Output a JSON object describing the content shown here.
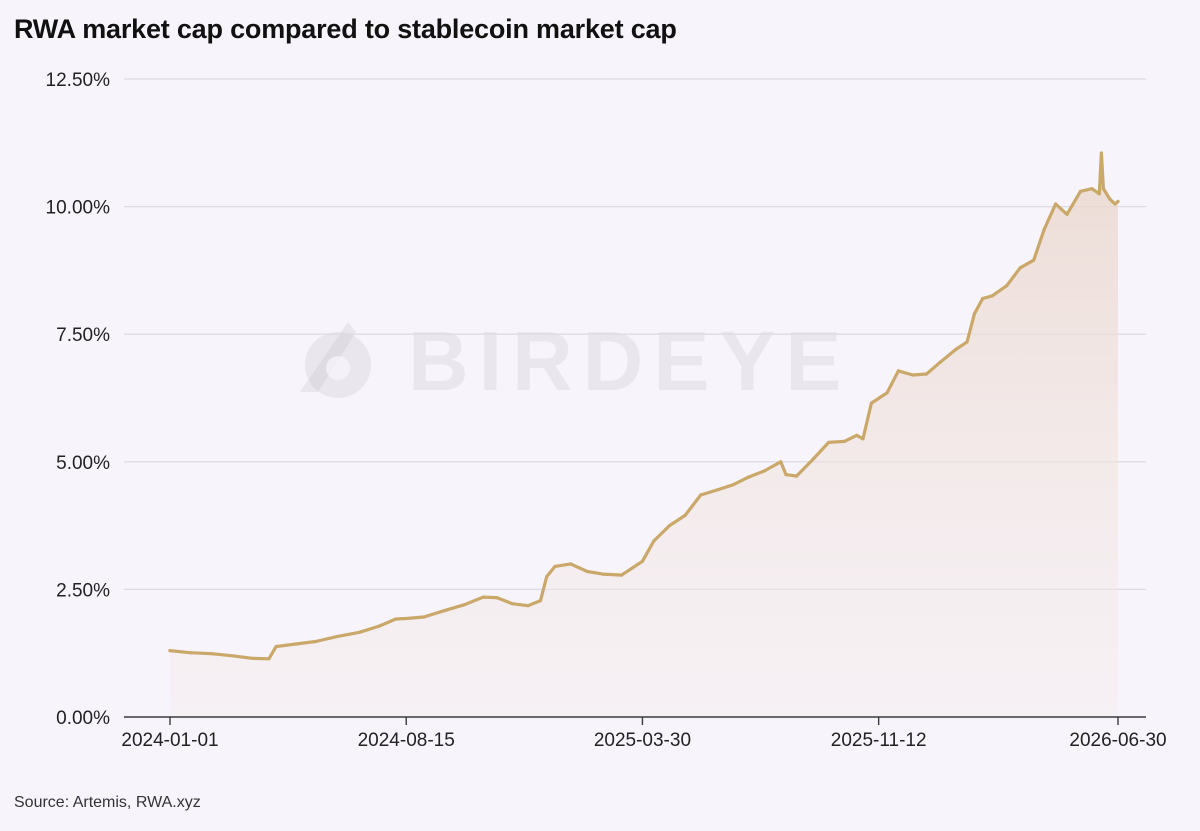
{
  "title": "RWA market cap compared to stablecoin market cap",
  "source": "Source: Artemis, RWA.xyz",
  "watermark": "BIRDEYE",
  "colors": {
    "line": "#c9a86a",
    "area": "#efe0da",
    "background": "#f7f4fb"
  },
  "chart_data": {
    "type": "area",
    "xlabel": "",
    "ylabel": "",
    "xlim": [
      "2024-01-01",
      "2026-06-30"
    ],
    "ylim": [
      0,
      12.5
    ],
    "y_ticks": [
      "0.00%",
      "2.50%",
      "5.00%",
      "7.50%",
      "10.00%",
      "12.50%"
    ],
    "x_ticks": [
      "2024-01-01",
      "2024-08-15",
      "2025-03-30",
      "2025-11-12",
      "2026-06-30"
    ],
    "grid": true,
    "legend": "none",
    "series": [
      {
        "values_unit": "%",
        "points": [
          [
            "2024-01-01",
            1.3
          ],
          [
            "2024-01-20",
            1.26
          ],
          [
            "2024-02-10",
            1.24
          ],
          [
            "2024-03-01",
            1.2
          ],
          [
            "2024-03-20",
            1.15
          ],
          [
            "2024-04-05",
            1.14
          ],
          [
            "2024-04-12",
            1.38
          ],
          [
            "2024-05-01",
            1.43
          ],
          [
            "2024-05-20",
            1.48
          ],
          [
            "2024-06-10",
            1.58
          ],
          [
            "2024-07-01",
            1.66
          ],
          [
            "2024-07-20",
            1.78
          ],
          [
            "2024-08-05",
            1.92
          ],
          [
            "2024-08-15",
            1.93
          ],
          [
            "2024-09-01",
            1.96
          ],
          [
            "2024-09-20",
            2.08
          ],
          [
            "2024-10-10",
            2.2
          ],
          [
            "2024-10-28",
            2.35
          ],
          [
            "2024-11-10",
            2.34
          ],
          [
            "2024-11-25",
            2.22
          ],
          [
            "2024-12-10",
            2.18
          ],
          [
            "2024-12-22",
            2.28
          ],
          [
            "2024-12-28",
            2.75
          ],
          [
            "2025-01-05",
            2.95
          ],
          [
            "2025-01-20",
            3.0
          ],
          [
            "2025-02-05",
            2.85
          ],
          [
            "2025-02-20",
            2.8
          ],
          [
            "2025-03-10",
            2.78
          ],
          [
            "2025-03-30",
            3.05
          ],
          [
            "2025-04-10",
            3.45
          ],
          [
            "2025-04-25",
            3.75
          ],
          [
            "2025-05-10",
            3.95
          ],
          [
            "2025-05-25",
            4.35
          ],
          [
            "2025-06-10",
            4.45
          ],
          [
            "2025-06-25",
            4.55
          ],
          [
            "2025-07-10",
            4.7
          ],
          [
            "2025-07-25",
            4.82
          ],
          [
            "2025-08-10",
            5.0
          ],
          [
            "2025-08-15",
            4.75
          ],
          [
            "2025-08-25",
            4.72
          ],
          [
            "2025-09-10",
            5.05
          ],
          [
            "2025-09-25",
            5.38
          ],
          [
            "2025-10-10",
            5.4
          ],
          [
            "2025-10-22",
            5.52
          ],
          [
            "2025-10-28",
            5.45
          ],
          [
            "2025-11-05",
            6.15
          ],
          [
            "2025-11-20",
            6.35
          ],
          [
            "2025-12-01",
            6.78
          ],
          [
            "2025-12-15",
            6.7
          ],
          [
            "2025-12-28",
            6.72
          ],
          [
            "2026-01-10",
            6.95
          ],
          [
            "2026-01-25",
            7.2
          ],
          [
            "2026-02-05",
            7.35
          ],
          [
            "2026-02-12",
            7.9
          ],
          [
            "2026-02-20",
            8.2
          ],
          [
            "2026-03-01",
            8.25
          ],
          [
            "2026-03-15",
            8.45
          ],
          [
            "2026-03-28",
            8.8
          ],
          [
            "2026-04-10",
            8.95
          ],
          [
            "2026-04-20",
            9.55
          ],
          [
            "2026-05-01",
            10.05
          ],
          [
            "2026-05-12",
            9.85
          ],
          [
            "2026-05-25",
            10.3
          ],
          [
            "2026-06-05",
            10.35
          ],
          [
            "2026-06-12",
            10.25
          ],
          [
            "2026-06-14",
            11.05
          ],
          [
            "2026-06-16",
            10.35
          ],
          [
            "2026-06-22",
            10.15
          ],
          [
            "2026-06-27",
            10.05
          ],
          [
            "2026-06-30",
            10.1
          ]
        ]
      }
    ]
  }
}
